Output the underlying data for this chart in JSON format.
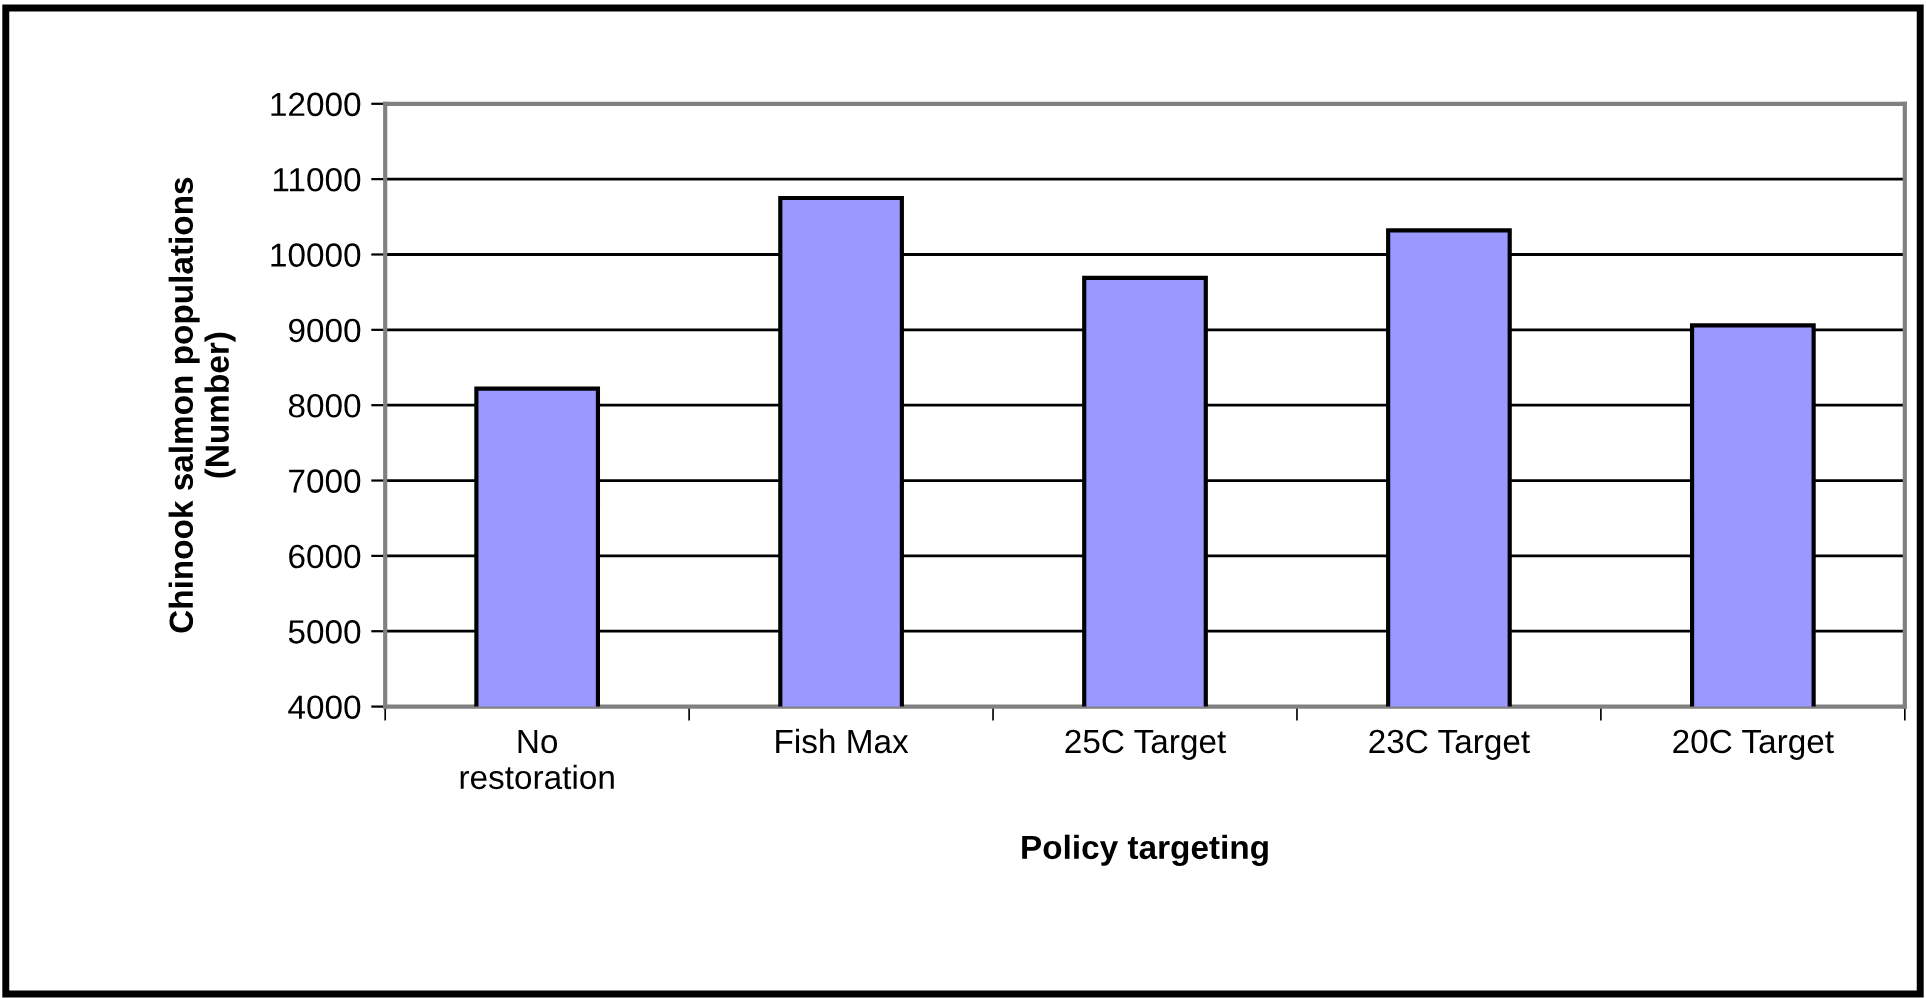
{
  "chart_data": {
    "type": "bar",
    "xlabel": "Policy targeting",
    "ylabel": "Chinook salmon populations\n(Number)",
    "categories": [
      "No\nrestoration",
      "Fish Max",
      "25C Target",
      "23C Target",
      "20C Target"
    ],
    "values": [
      8220,
      10750,
      9690,
      10320,
      9060
    ],
    "color": "#9999ff",
    "ylim": [
      4000,
      12000
    ],
    "yticks": [
      4000,
      5000,
      6000,
      7000,
      8000,
      9000,
      10000,
      11000,
      12000
    ],
    "grid": "y"
  }
}
